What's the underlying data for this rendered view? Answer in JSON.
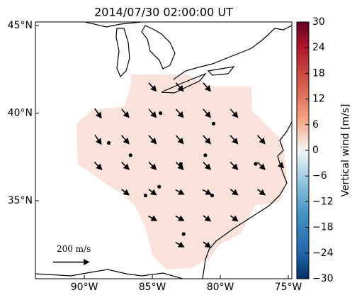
{
  "chart_data": {
    "type": "map",
    "title": "2014/07/30 02:00:00 UT",
    "xlim": [
      -93.6,
      -74.74
    ],
    "ylim": [
      30.55,
      45.2
    ],
    "xticks": [
      {
        "value": -90,
        "label": "90°W"
      },
      {
        "value": -85,
        "label": "85°W"
      },
      {
        "value": -80,
        "label": "80°W"
      },
      {
        "value": -75,
        "label": "75°W"
      }
    ],
    "yticks": [
      {
        "value": 35,
        "label": "35°N"
      },
      {
        "value": 40,
        "label": "40°N"
      },
      {
        "value": 45,
        "label": "45°N"
      }
    ],
    "vectors": {
      "lon": [
        -85,
        -83,
        -81,
        -89,
        -87,
        -85,
        -83,
        -81,
        -79,
        -89,
        -87,
        -85,
        -83,
        -81,
        -79,
        -77,
        -89,
        -87,
        -85,
        -83,
        -81,
        -79,
        -77,
        -75.5,
        -87,
        -85,
        -83,
        -81,
        -79,
        -77,
        -85,
        -83,
        -81,
        -79,
        -83,
        -81,
        -84.4,
        -80.5,
        -88.2,
        -86.6,
        -82.9,
        -81.1,
        -77.4,
        -85.5,
        -84.5,
        -80.6,
        -82.7
      ],
      "lat": [
        41.5,
        41.5,
        41.5,
        40,
        40,
        40,
        40,
        40,
        40,
        38.5,
        38.5,
        38.5,
        38.5,
        38.5,
        38.5,
        38.5,
        37,
        37,
        37,
        37,
        37,
        37,
        37,
        37,
        35.5,
        35.5,
        35.5,
        35.5,
        35.5,
        35.5,
        34,
        34,
        34,
        34,
        32.5,
        32.5,
        40,
        39.4,
        38.3,
        37.6,
        37.1,
        37.6,
        37.1,
        35.3,
        35.8,
        35.3,
        33.1
      ],
      "u": [
        40,
        40,
        40,
        35,
        40,
        40,
        40,
        40,
        40,
        35,
        40,
        40,
        40,
        40,
        40,
        40,
        40,
        40,
        40,
        40,
        40,
        40,
        40,
        20,
        40,
        40,
        45,
        45,
        40,
        40,
        45,
        45,
        40,
        40,
        45,
        40,
        0,
        0,
        0,
        0,
        0,
        0,
        0,
        0,
        0,
        0,
        0
      ],
      "v": [
        -45,
        -45,
        -45,
        -50,
        -45,
        -45,
        -45,
        -45,
        -45,
        -50,
        -45,
        -45,
        -45,
        -45,
        -45,
        -45,
        -40,
        -40,
        -40,
        -40,
        -40,
        -40,
        -40,
        -20,
        -30,
        -30,
        -25,
        -25,
        -30,
        -30,
        -25,
        -25,
        -30,
        -30,
        -25,
        -30,
        0,
        0,
        0,
        0,
        0,
        0,
        0,
        0,
        0,
        0,
        0
      ],
      "color": "#000000"
    },
    "quiver_key": {
      "value": 200,
      "label": "200 m/s",
      "lon": -92.3,
      "lat": 31.5
    },
    "colorbar": {
      "label": "Vertical wind [m/s]",
      "lim": [
        -30,
        30
      ],
      "ticks": [
        {
          "value": -30,
          "label": "−30"
        },
        {
          "value": -24,
          "label": "−24"
        },
        {
          "value": -18,
          "label": "−18"
        },
        {
          "value": -12,
          "label": "−12"
        },
        {
          "value": -6,
          "label": "−6"
        },
        0,
        6,
        12,
        18,
        24,
        30
      ]
    }
  }
}
